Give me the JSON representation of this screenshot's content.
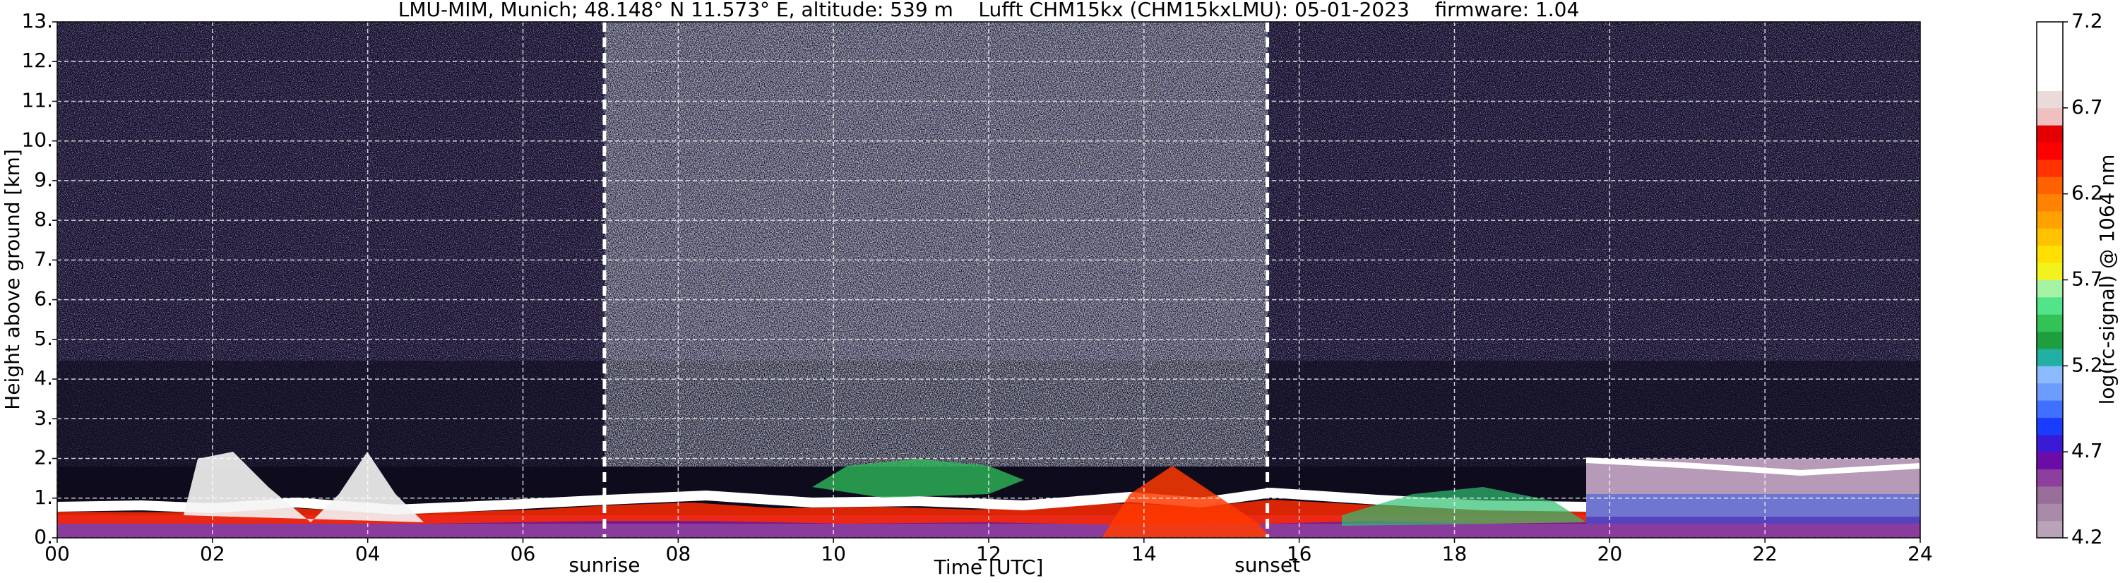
{
  "chart_data": {
    "type": "heatmap",
    "title": "LMU-MIM, Munich; 48.148° N 11.573° E, altitude: 539 m    Lufft CHM15kx (CHM15kxLMU): 05-01-2023    firmware: 1.04",
    "x_label": "Time [UTC]",
    "y_label": "Height above ground [km]",
    "xlim": [
      0,
      24
    ],
    "ylim": [
      0,
      13
    ],
    "xticks": [
      {
        "value": 0,
        "label": "00"
      },
      {
        "value": 2,
        "label": "02"
      },
      {
        "value": 4,
        "label": "04"
      },
      {
        "value": 6,
        "label": "06"
      },
      {
        "value": 8,
        "label": "08"
      },
      {
        "value": 10,
        "label": "10"
      },
      {
        "value": 12,
        "label": "12"
      },
      {
        "value": 14,
        "label": "14"
      },
      {
        "value": 16,
        "label": "16"
      },
      {
        "value": 18,
        "label": "18"
      },
      {
        "value": 20,
        "label": "20"
      },
      {
        "value": 22,
        "label": "22"
      },
      {
        "value": 24,
        "label": "24"
      }
    ],
    "yticks": [
      {
        "value": 0,
        "label": "0."
      },
      {
        "value": 1,
        "label": "1."
      },
      {
        "value": 2,
        "label": "2."
      },
      {
        "value": 3,
        "label": "3."
      },
      {
        "value": 4,
        "label": "4."
      },
      {
        "value": 5,
        "label": "5."
      },
      {
        "value": 6,
        "label": "6."
      },
      {
        "value": 7,
        "label": "7."
      },
      {
        "value": 8,
        "label": "8."
      },
      {
        "value": 9,
        "label": "9."
      },
      {
        "value": 10,
        "label": "10."
      },
      {
        "value": 11,
        "label": "11."
      },
      {
        "value": 12,
        "label": "12."
      },
      {
        "value": 13,
        "label": "13."
      }
    ],
    "grid": true,
    "annotations": [
      {
        "text": "sunrise",
        "x": 7.05
      },
      {
        "text": "sunset",
        "x": 15.59
      }
    ],
    "colorbar": {
      "label": "log(rc-signal) @ 1064 nm",
      "lim": [
        4.2,
        7.2
      ],
      "ticks": [
        4.2,
        4.7,
        5.2,
        5.7,
        6.2,
        6.7,
        7.2
      ],
      "colors": [
        "#b8a3b8",
        "#a98aa9",
        "#9a6e9a",
        "#8c3f9c",
        "#6c0ca6",
        "#3a1ad6",
        "#1a3cff",
        "#3f70ff",
        "#6c9cff",
        "#8cbaff",
        "#22b0a4",
        "#1e9e3e",
        "#32c256",
        "#52e48a",
        "#a4f2a4",
        "#f2f21e",
        "#ffe000",
        "#ffc200",
        "#ffa200",
        "#ff8200",
        "#ff6000",
        "#ff3200",
        "#ff0000",
        "#e40000",
        "#f0c0c0",
        "#ebdada",
        "#ffffff",
        "#ffffff",
        "#ffffff",
        "#ffffff"
      ]
    }
  }
}
